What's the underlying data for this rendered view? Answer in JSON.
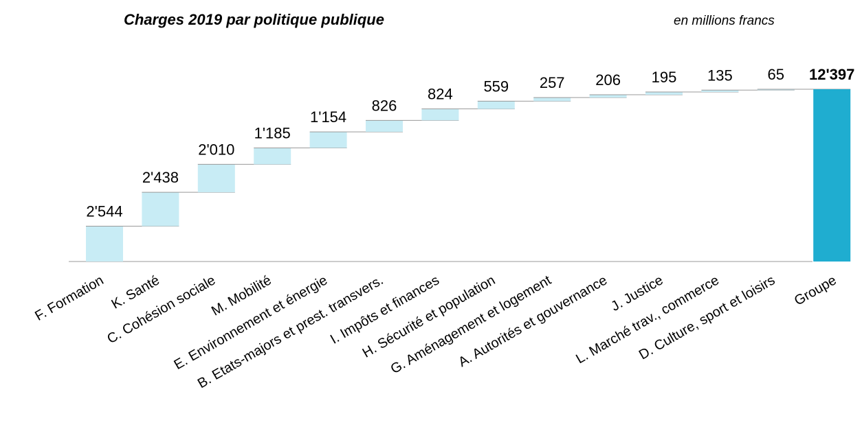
{
  "chart_data": {
    "type": "waterfall",
    "title": "Charges 2019 par politique publique",
    "subtitle": "en millions francs",
    "categories": [
      "F. Formation",
      "K. Santé",
      "C. Cohésion sociale",
      "M. Mobilité",
      "E. Environnement et énergie",
      "B. Etats-majors et prest. transvers.",
      "I. Impôts et finances",
      "H. Sécurité et population",
      "G. Aménagement et logement",
      "A. Autorités et gouvernance",
      "J. Justice",
      "L. Marché trav., commerce",
      "D. Culture, sport et loisirs"
    ],
    "values": [
      2544,
      2438,
      2010,
      1185,
      1154,
      826,
      824,
      559,
      257,
      206,
      195,
      135,
      65
    ],
    "value_labels": [
      "2'544",
      "2'438",
      "2'010",
      "1'185",
      "1'154",
      "826",
      "824",
      "559",
      "257",
      "206",
      "195",
      "135",
      "65"
    ],
    "color": "#c8ecf5",
    "total": {
      "category": "Groupe",
      "value": 12397,
      "value_label": "12'397",
      "color": "#1fadd0"
    }
  }
}
